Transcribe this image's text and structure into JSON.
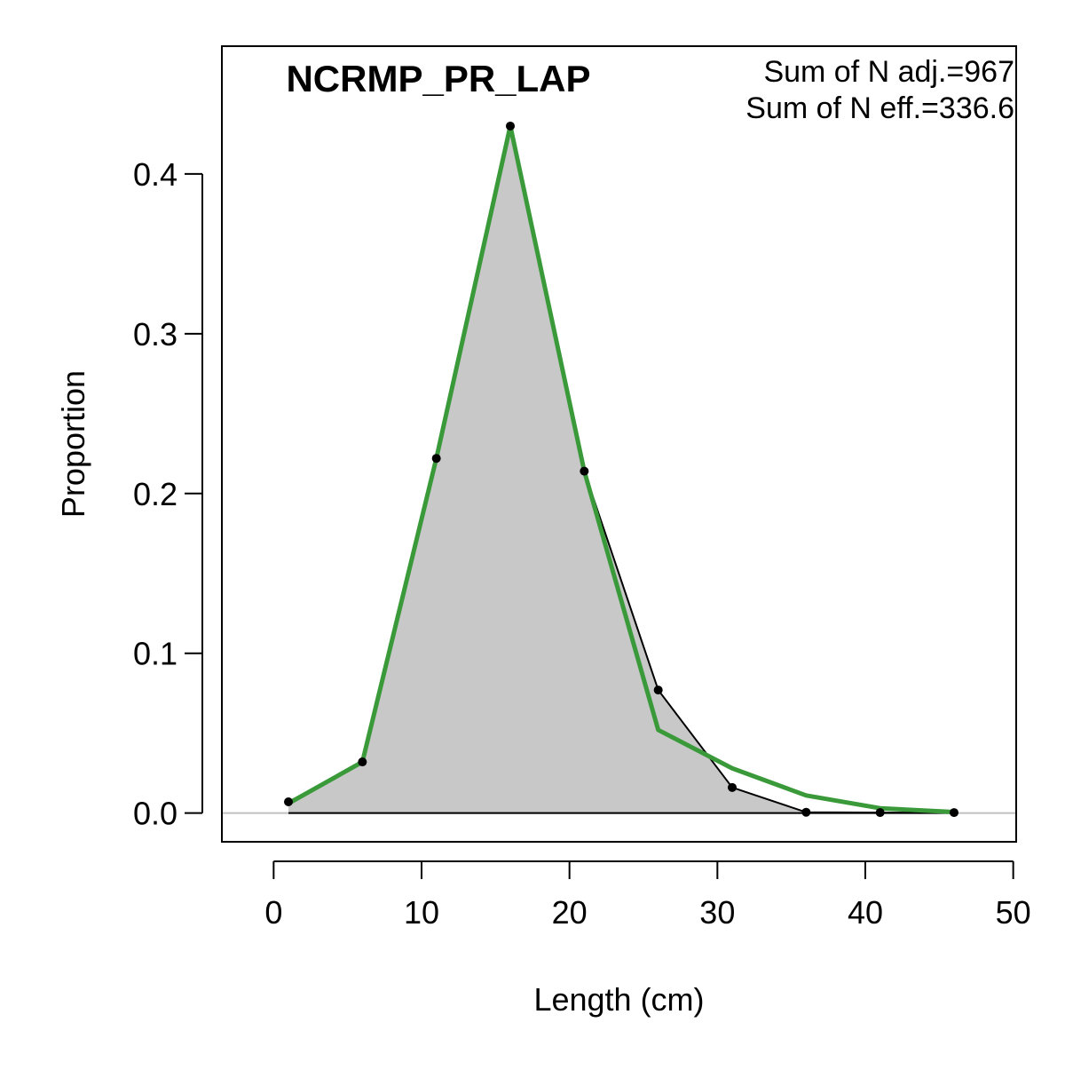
{
  "chart_data": {
    "type": "area",
    "title": "NCRMP_PR_LAP",
    "annotations": [
      "Sum of N adj.=967",
      "Sum of N eff.=336.6"
    ],
    "xlabel": "Length (cm)",
    "ylabel": "Proportion",
    "xlim": [
      -3.5,
      50.2
    ],
    "ylim": [
      -0.018,
      0.48
    ],
    "xticks": [
      0,
      10,
      20,
      30,
      40,
      50
    ],
    "yticks": [
      0.0,
      0.1,
      0.2,
      0.3,
      0.4
    ],
    "xtick_labels": [
      "0",
      "10",
      "20",
      "30",
      "40",
      "50"
    ],
    "ytick_labels": [
      "0.0",
      "0.1",
      "0.2",
      "0.3",
      "0.4"
    ],
    "grid": false,
    "legend": "none",
    "series": [
      {
        "role": "observed",
        "style": "grey-filled area with black line and points",
        "color": "#000000",
        "fill": "#c8c8c8",
        "x": [
          1,
          6,
          11,
          16,
          21,
          26,
          31,
          36,
          41,
          46
        ],
        "y": [
          0.007,
          0.032,
          0.222,
          0.43,
          0.214,
          0.077,
          0.016,
          0.0005,
          0.0003,
          0.0003
        ]
      },
      {
        "role": "expected",
        "style": "green line",
        "color": "#3a9a3a",
        "x": [
          1,
          6,
          11,
          16,
          21,
          26,
          31,
          36,
          41,
          46
        ],
        "y": [
          0.006,
          0.032,
          0.222,
          0.43,
          0.214,
          0.052,
          0.028,
          0.011,
          0.003,
          0.0006
        ]
      }
    ],
    "zero_line_color": "#c0c0c0"
  }
}
